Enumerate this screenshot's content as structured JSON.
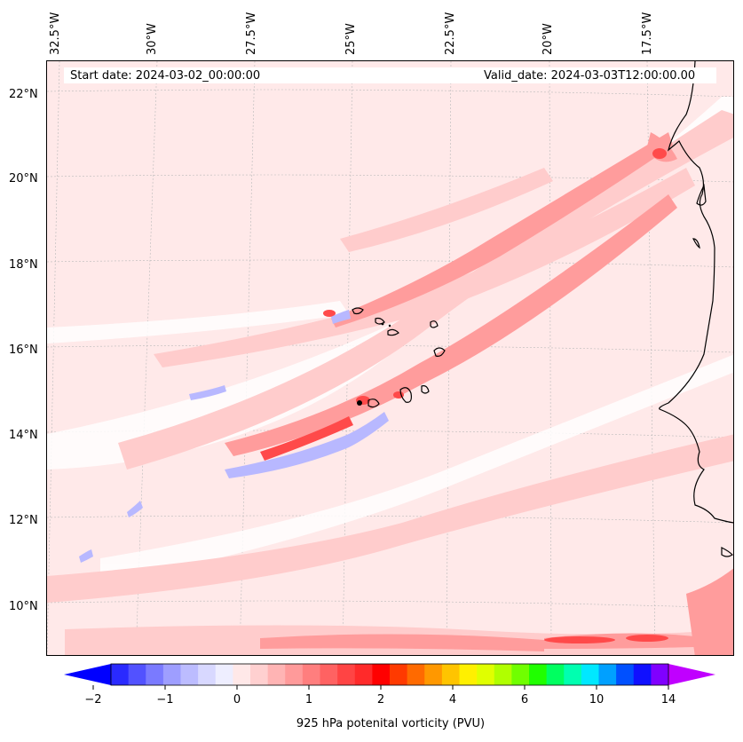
{
  "header": {
    "start_date": "Start date: 2024-03-02_00:00:00",
    "valid_date": "Valid_date: 2024-03-03T12:00:00.00"
  },
  "axes": {
    "lon_labels": [
      "32.5°W",
      "30°W",
      "27.5°W",
      "25°W",
      "22.5°W",
      "20°W",
      "17.5°W"
    ],
    "lat_labels": [
      "22°N",
      "20°N",
      "18°N",
      "16°N",
      "14°N",
      "12°N",
      "10°N"
    ]
  },
  "colorbar": {
    "title": "925 hPa potenital vorticity (PVU)",
    "tick_labels": [
      "−2",
      "−1",
      "0",
      "1",
      "2",
      "4",
      "6",
      "10",
      "14"
    ],
    "colors": [
      "#0000ff",
      "#2a2aff",
      "#5252ff",
      "#7a7aff",
      "#9e9eff",
      "#bcbcff",
      "#d8d8ff",
      "#eeeeff",
      "#ffe8e8",
      "#ffd0d0",
      "#ffb4b4",
      "#ff9a9a",
      "#ff7e7e",
      "#ff6262",
      "#ff4444",
      "#ff2a2a",
      "#ff0000",
      "#ff3a00",
      "#ff6a00",
      "#ff9800",
      "#ffc400",
      "#fff000",
      "#e0ff00",
      "#b0ff00",
      "#70ff00",
      "#20ff00",
      "#00ff60",
      "#00ffb0",
      "#00e8ff",
      "#00a0ff",
      "#0050ff",
      "#1010ff",
      "#8000ff",
      "#c000ff"
    ]
  }
}
